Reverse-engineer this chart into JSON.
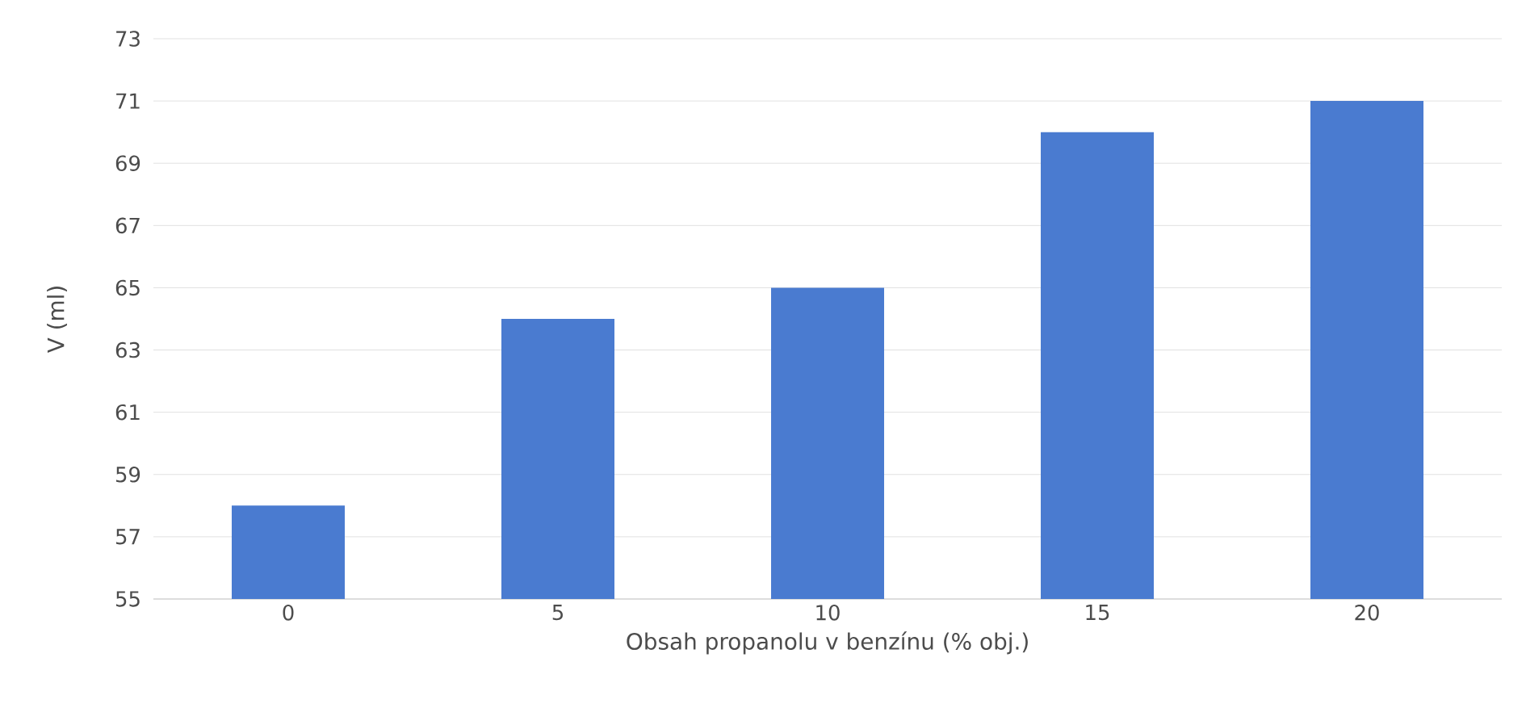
{
  "chart_data": {
    "type": "bar",
    "xlabel": "Obsah propanolu v benzínu (% obj.)",
    "ylabel": "V (ml)",
    "categories": [
      "0",
      "5",
      "10",
      "15",
      "20"
    ],
    "values": [
      58,
      64,
      65,
      70,
      71
    ],
    "color": "#4a7bd0",
    "ylim": [
      55,
      73
    ],
    "yticks": [
      55,
      57,
      59,
      61,
      63,
      65,
      67,
      69,
      71,
      73
    ],
    "grid": "y"
  }
}
